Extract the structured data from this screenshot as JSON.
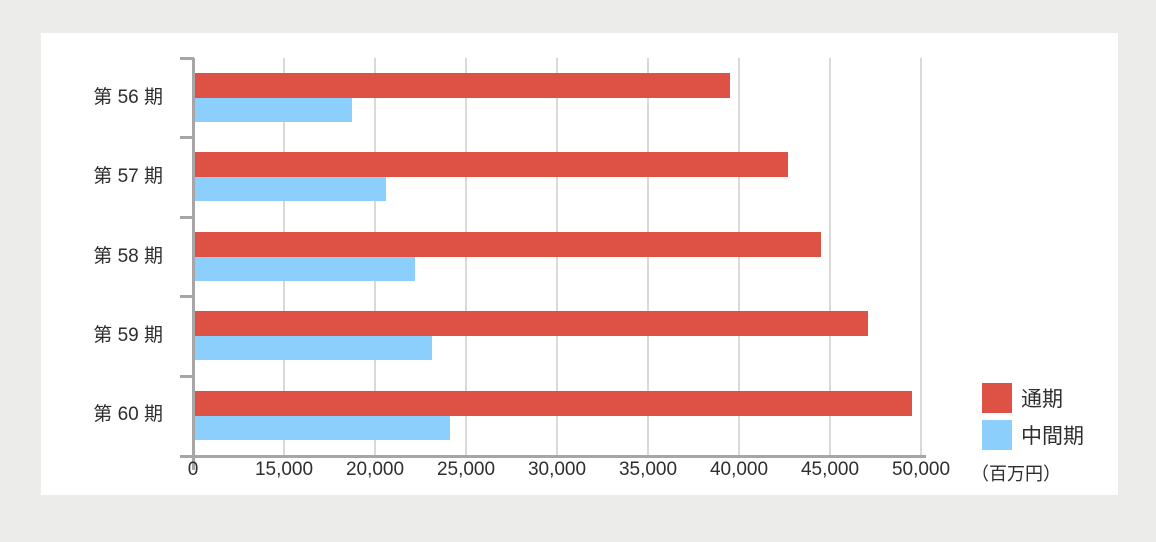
{
  "page": {
    "background_color": "#ECECEA",
    "panel_background_color": "#FFFFFF"
  },
  "chart_data": {
    "type": "bar",
    "orientation": "horizontal",
    "title": "",
    "categories": [
      "第 56 期",
      "第 57 期",
      "第 58 期",
      "第 59 期",
      "第 60 期"
    ],
    "series": [
      {
        "name": "通期",
        "color": "#DD5244",
        "values": [
          39400,
          42600,
          44400,
          47000,
          49400
        ]
      },
      {
        "name": "中間期",
        "color": "#8DCFFC",
        "values": [
          18600,
          20500,
          22100,
          23000,
          24000
        ]
      }
    ],
    "x_ticks": [
      0,
      15000,
      20000,
      25000,
      30000,
      35000,
      40000,
      45000,
      50000
    ],
    "x_tick_labels": [
      "0",
      "15,000",
      "20,000",
      "25,000",
      "30,000",
      "35,000",
      "40,000",
      "45,000",
      "50,000"
    ],
    "axis_break": {
      "between": [
        0,
        15000
      ],
      "note": "segment 0-15000 compressed to one gridline interval, no break glyph drawn"
    },
    "xlim": [
      0,
      50000
    ],
    "unit_label": "（百万円）",
    "grid": true,
    "legend_position": "right-bottom",
    "colors": {
      "axis": "#A6A6A6",
      "gridline": "#D9D9D9",
      "text": "#2E2E2E"
    }
  },
  "legend": {
    "items": [
      {
        "label": "通期",
        "color": "#DD5244"
      },
      {
        "label": "中間期",
        "color": "#8DCFFC"
      }
    ]
  }
}
